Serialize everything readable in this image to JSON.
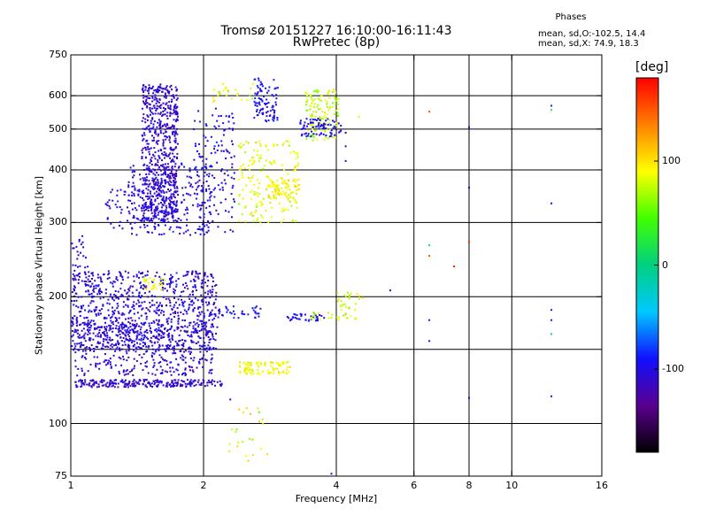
{
  "title_line1": "Tromsø 20151227 16:10:00-16:11:43",
  "title_line2": "RwPretec (8p)",
  "stats": {
    "title": "Phases",
    "line_o": "mean, sd,O:-102.5, 14.4",
    "line_x": "mean, sd,X:  74.9, 18.3"
  },
  "colorbar": {
    "unit": "[deg]",
    "min": -180,
    "max": 180,
    "ticks": [
      {
        "value": 100,
        "label": "100"
      },
      {
        "value": 0,
        "label": "0"
      },
      {
        "value": -100,
        "label": "-100"
      }
    ],
    "colors": [
      "#000000",
      "#5a0090",
      "#1010ff",
      "#00c8ff",
      "#00d080",
      "#40ff00",
      "#ffff00",
      "#ff8000",
      "#ff0000"
    ]
  },
  "chart_data": {
    "type": "scatter",
    "xlabel": "Frequency [MHz]",
    "ylabel": "Stationary phase Virtual Height [km]",
    "x_scale": "log",
    "y_scale": "log",
    "xlim": [
      1,
      16
    ],
    "ylim": [
      75,
      750
    ],
    "x_ticks": [
      {
        "value": 1,
        "label": "1"
      },
      {
        "value": 2,
        "label": "2"
      },
      {
        "value": 4,
        "label": "4"
      },
      {
        "value": 6,
        "label": "6"
      },
      {
        "value": 8,
        "label": "8"
      },
      {
        "value": 10,
        "label": "10"
      },
      {
        "value": 16,
        "label": "16"
      }
    ],
    "y_ticks": [
      {
        "value": 75,
        "label": "75"
      },
      {
        "value": 100,
        "label": "100"
      },
      {
        "value": 200,
        "label": "200"
      },
      {
        "value": 300,
        "label": "300"
      },
      {
        "value": 400,
        "label": "400"
      },
      {
        "value": 500,
        "label": "500"
      },
      {
        "value": 600,
        "label": "600"
      },
      {
        "value": 750,
        "label": "750"
      }
    ],
    "x_grid": [
      2,
      4,
      6,
      8,
      10
    ],
    "y_grid": [
      100,
      150,
      200,
      300,
      400,
      500,
      600
    ],
    "grid": true,
    "clusters": [
      {
        "f_range": [
          1.45,
          1.75
        ],
        "h_range": [
          300,
          640
        ],
        "phase": -110,
        "phase_sd": 12,
        "count": 650
      },
      {
        "f_range": [
          1.35,
          2.1
        ],
        "h_range": [
          280,
          420
        ],
        "phase": -105,
        "phase_sd": 14,
        "count": 250
      },
      {
        "f_range": [
          1.9,
          2.35
        ],
        "h_range": [
          280,
          560
        ],
        "phase": -100,
        "phase_sd": 15,
        "count": 140
      },
      {
        "f_range": [
          1.2,
          1.5
        ],
        "h_range": [
          290,
          360
        ],
        "phase": -100,
        "phase_sd": 18,
        "count": 60
      },
      {
        "f_range": [
          2.4,
          3.3
        ],
        "h_range": [
          300,
          470
        ],
        "phase": 85,
        "phase_sd": 15,
        "count": 170
      },
      {
        "f_range": [
          2.8,
          3.3
        ],
        "h_range": [
          340,
          380
        ],
        "phase": 95,
        "phase_sd": 10,
        "count": 80
      },
      {
        "f_range": [
          2.6,
          2.95
        ],
        "h_range": [
          520,
          660
        ],
        "phase": -95,
        "phase_sd": 15,
        "count": 90
      },
      {
        "f_range": [
          3.4,
          4.05
        ],
        "h_range": [
          470,
          620
        ],
        "phase": 75,
        "phase_sd": 20,
        "count": 130
      },
      {
        "f_range": [
          3.3,
          4.1
        ],
        "h_range": [
          480,
          530
        ],
        "phase": -100,
        "phase_sd": 12,
        "count": 80
      },
      {
        "f_range": [
          2.1,
          2.6
        ],
        "h_range": [
          575,
          640
        ],
        "phase": 85,
        "phase_sd": 15,
        "count": 25
      },
      {
        "f_range": [
          1.0,
          2.15
        ],
        "h_range": [
          150,
          230
        ],
        "phase": -105,
        "phase_sd": 15,
        "count": 850
      },
      {
        "f_range": [
          1.0,
          2.1
        ],
        "h_range": [
          130,
          175
        ],
        "phase": -108,
        "phase_sd": 15,
        "count": 420
      },
      {
        "f_range": [
          1.02,
          2.2
        ],
        "h_range": [
          122,
          127
        ],
        "phase": -110,
        "phase_sd": 10,
        "count": 240
      },
      {
        "f_range": [
          1.0,
          1.1
        ],
        "h_range": [
          205,
          280
        ],
        "phase": -100,
        "phase_sd": 12,
        "count": 30
      },
      {
        "f_range": [
          1.45,
          1.65
        ],
        "h_range": [
          207,
          222
        ],
        "phase": 90,
        "phase_sd": 12,
        "count": 30
      },
      {
        "f_range": [
          2.4,
          3.15
        ],
        "h_range": [
          131,
          140
        ],
        "phase": 90,
        "phase_sd": 12,
        "count": 90
      },
      {
        "f_range": [
          2.05,
          2.7
        ],
        "h_range": [
          178,
          190
        ],
        "phase": -95,
        "phase_sd": 12,
        "count": 40
      },
      {
        "f_range": [
          3.1,
          3.8
        ],
        "h_range": [
          175,
          182
        ],
        "phase": -95,
        "phase_sd": 14,
        "count": 35
      },
      {
        "f_range": [
          3.5,
          4.5
        ],
        "h_range": [
          176,
          184
        ],
        "phase": 80,
        "phase_sd": 20,
        "count": 25
      },
      {
        "f_range": [
          4.0,
          4.6
        ],
        "h_range": [
          185,
          205
        ],
        "phase": 85,
        "phase_sd": 20,
        "count": 25
      },
      {
        "f_range": [
          2.25,
          2.8
        ],
        "h_range": [
          80,
          115
        ],
        "phase": 90,
        "phase_sd": 25,
        "count": 25
      }
    ],
    "points": [
      {
        "f": 1.0,
        "h": 93,
        "phase": -105
      },
      {
        "f": 2.3,
        "h": 114,
        "phase": -105
      },
      {
        "f": 4.2,
        "h": 490,
        "phase": -105
      },
      {
        "f": 4.2,
        "h": 455,
        "phase": -105
      },
      {
        "f": 4.2,
        "h": 420,
        "phase": -105
      },
      {
        "f": 4.5,
        "h": 535,
        "phase": 80
      },
      {
        "f": 5.3,
        "h": 207,
        "phase": -110
      },
      {
        "f": 6.5,
        "h": 550,
        "phase": 150
      },
      {
        "f": 6.5,
        "h": 265,
        "phase": 10
      },
      {
        "f": 6.5,
        "h": 250,
        "phase": 150
      },
      {
        "f": 6.5,
        "h": 176,
        "phase": -95
      },
      {
        "f": 6.5,
        "h": 157,
        "phase": -95
      },
      {
        "f": 7.4,
        "h": 236,
        "phase": 170
      },
      {
        "f": 8.0,
        "h": 505,
        "phase": -110
      },
      {
        "f": 8.0,
        "h": 363,
        "phase": -110
      },
      {
        "f": 8.0,
        "h": 270,
        "phase": 160
      },
      {
        "f": 8.0,
        "h": 115,
        "phase": -110
      },
      {
        "f": 12.3,
        "h": 568,
        "phase": -100
      },
      {
        "f": 12.3,
        "h": 555,
        "phase": 20
      },
      {
        "f": 12.3,
        "h": 333,
        "phase": -95
      },
      {
        "f": 12.3,
        "h": 186,
        "phase": -95
      },
      {
        "f": 12.3,
        "h": 176,
        "phase": -100
      },
      {
        "f": 12.3,
        "h": 163,
        "phase": 10
      },
      {
        "f": 12.3,
        "h": 116,
        "phase": -95
      },
      {
        "f": 3.9,
        "h": 76,
        "phase": -110
      }
    ]
  }
}
